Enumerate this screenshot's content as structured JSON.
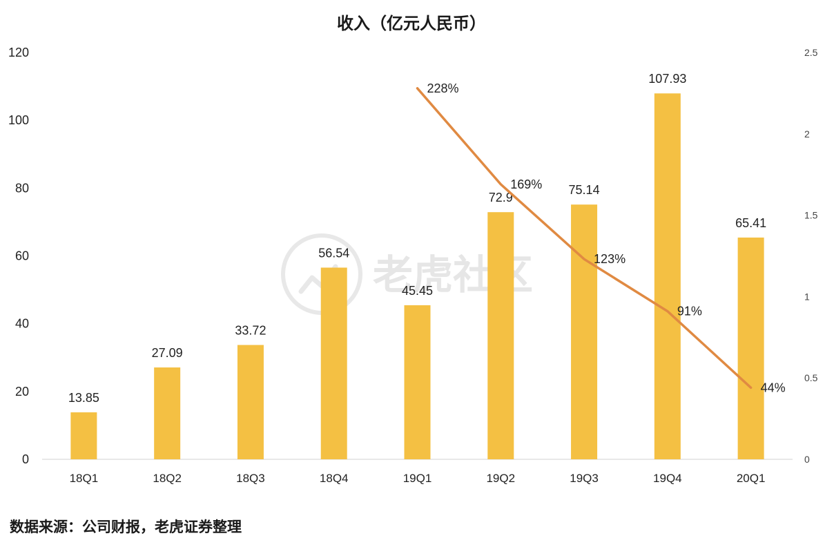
{
  "chart_data": {
    "type": "bar",
    "title": "收入（亿元人民币）",
    "categories": [
      "18Q1",
      "18Q2",
      "18Q3",
      "18Q4",
      "19Q1",
      "19Q2",
      "19Q3",
      "19Q4",
      "20Q1"
    ],
    "series": [
      {
        "type": "bar",
        "axis": "left",
        "color": "#F4C043",
        "values": [
          13.85,
          27.09,
          33.72,
          56.54,
          45.45,
          72.9,
          75.14,
          107.93,
          65.41
        ],
        "labels": [
          "13.85",
          "27.09",
          "33.72",
          "56.54",
          "45.45",
          "72.9",
          "75.14",
          "107.93",
          "65.41"
        ]
      },
      {
        "type": "line",
        "axis": "right",
        "color": "#E08A42",
        "values": [
          null,
          null,
          null,
          null,
          2.28,
          1.69,
          1.23,
          0.91,
          0.44
        ],
        "labels": [
          "",
          "",
          "",
          "",
          "228%",
          "169%",
          "123%",
          "91%",
          "44%"
        ]
      }
    ],
    "ylim": [
      0,
      120
    ],
    "yticks": [
      "0",
      "20",
      "40",
      "60",
      "80",
      "100",
      "120"
    ],
    "y2lim": [
      0,
      2.5
    ],
    "y2ticks": [
      "0",
      "0.5",
      "1",
      "1.5",
      "2",
      "2.5"
    ],
    "grid": false,
    "legend": "none"
  },
  "source": "数据来源：公司财报，老虎证券整理",
  "watermark": {
    "text": "老虎社区"
  }
}
